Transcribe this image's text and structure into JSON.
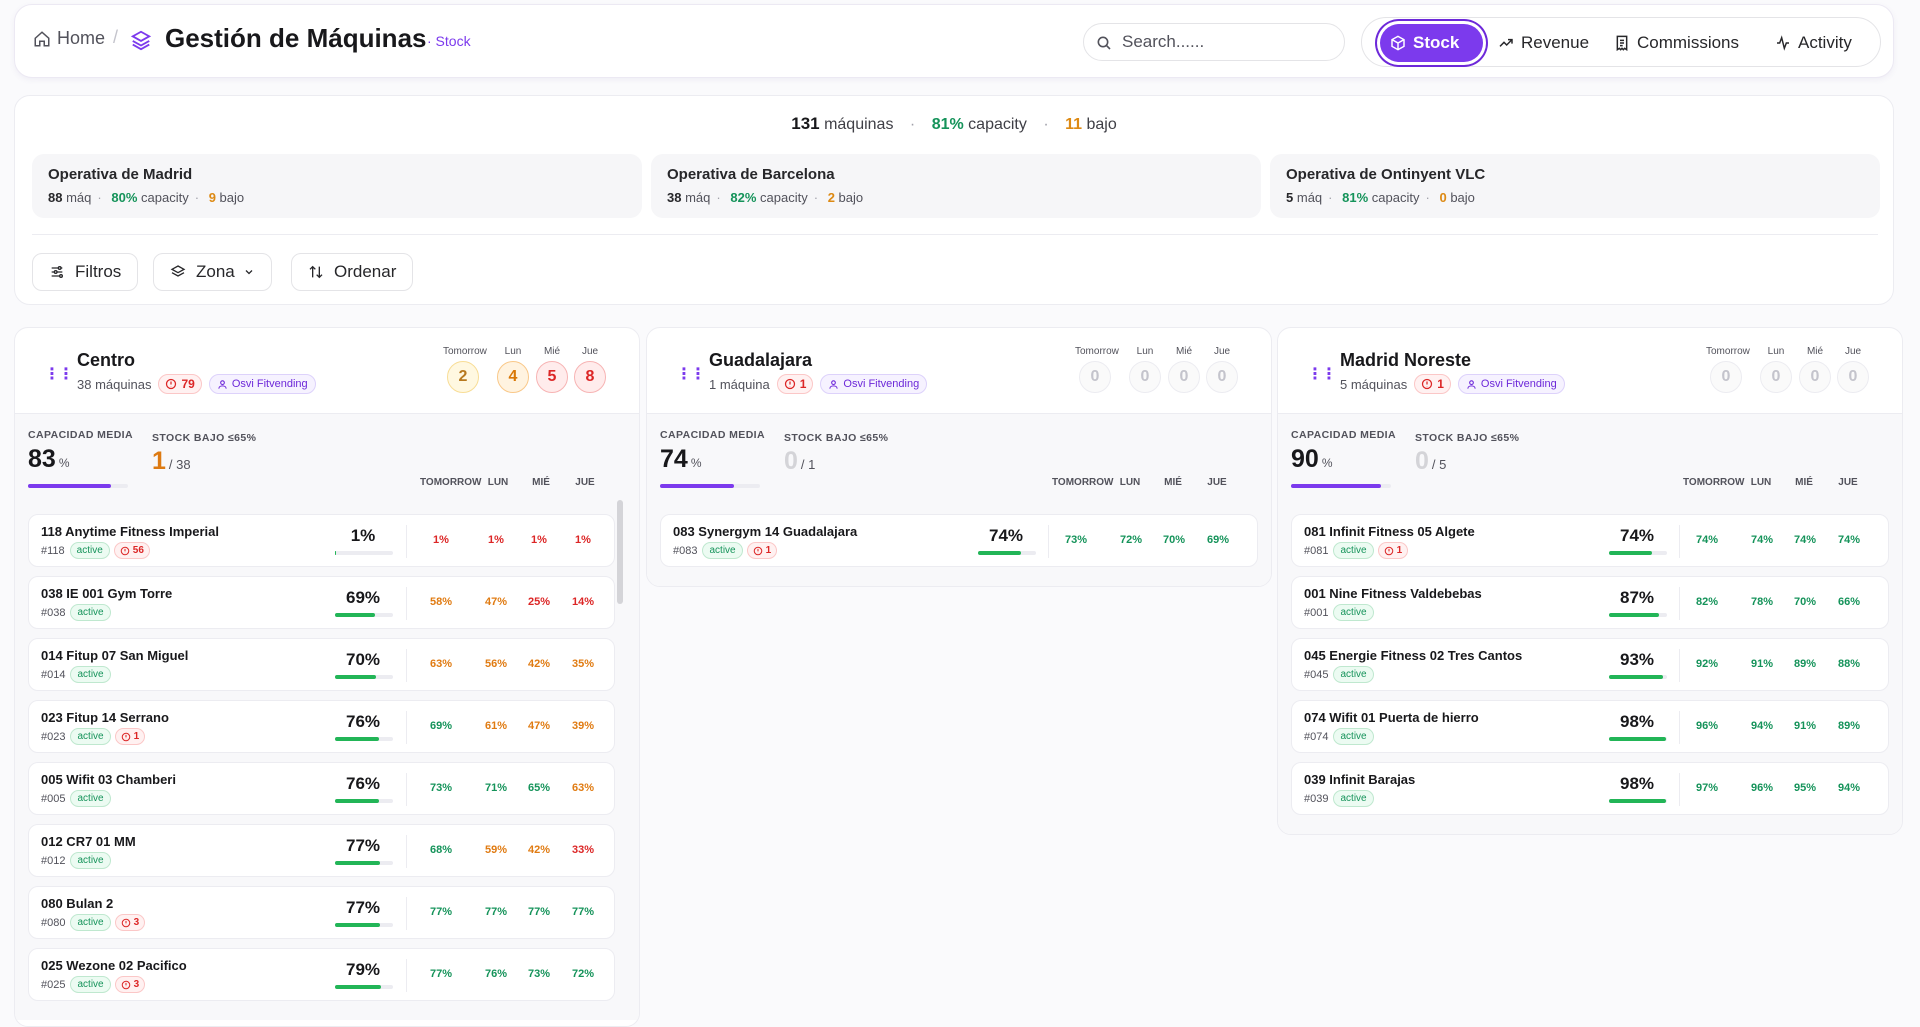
{
  "header": {
    "home_label": "Home",
    "separator": "/",
    "title": "Gestión de Máquinas",
    "title_tag": "· Stock",
    "search_placeholder": "Search......",
    "tabs": [
      {
        "label": "Stock",
        "icon": "package-icon",
        "active": true
      },
      {
        "label": "Revenue",
        "icon": "trending-up-icon",
        "active": false
      },
      {
        "label": "Commissions",
        "icon": "receipt-icon",
        "active": false
      },
      {
        "label": "Activity",
        "icon": "activity-icon",
        "active": false
      }
    ]
  },
  "summary": {
    "total_machines": "131",
    "machines_label": "máquinas",
    "capacity": "81%",
    "capacity_label": "capacity",
    "low": "11",
    "low_label": "bajo",
    "regions": [
      {
        "name": "Operativa de Madrid",
        "machines": "88",
        "machines_unit": "máq",
        "capacity": "80%",
        "capacity_label": "capacity",
        "low": "9",
        "low_label": "bajo"
      },
      {
        "name": "Operativa de Barcelona",
        "machines": "38",
        "machines_unit": "máq",
        "capacity": "82%",
        "capacity_label": "capacity",
        "low": "2",
        "low_label": "bajo"
      },
      {
        "name": "Operativa de Ontinyent VLC",
        "machines": "5",
        "machines_unit": "máq",
        "capacity": "81%",
        "capacity_label": "capacity",
        "low": "0",
        "low_label": "bajo"
      }
    ]
  },
  "filters": {
    "filtros": "Filtros",
    "zona": "Zona",
    "ordenar": "Ordenar"
  },
  "columns": [
    {
      "name": "Centro",
      "machines_text": "38 máquinas",
      "alerts": "79",
      "owner": "Osvi Fitvending",
      "day_headers": [
        "Tomorrow",
        "Lun",
        "Mié",
        "Jue"
      ],
      "day_counts": [
        "2",
        "4",
        "5",
        "8"
      ],
      "day_levels": [
        "y",
        "o",
        "r",
        "r"
      ],
      "cap_label": "CAPACIDAD MEDIA",
      "cap_value": "83",
      "cap_unit": "%",
      "cap_fraction": 0.83,
      "low_label": "STOCK BAJO ≤65%",
      "low_value": "1",
      "low_total": "/ 38",
      "low_color": "o",
      "forecast_headers": [
        "TOMORROW",
        "LUN",
        "MIÉ",
        "JUE"
      ],
      "machines": [
        {
          "name": "118 Anytime Fitness Imperial",
          "id": "#118",
          "status": "active",
          "alert": "56",
          "pct": "1%",
          "level": 0.01,
          "fc": [
            "1%",
            "1%",
            "1%",
            "1%"
          ],
          "fcc": [
            "r",
            "r",
            "r",
            "r"
          ]
        },
        {
          "name": "038 IE 001 Gym Torre",
          "id": "#038",
          "status": "active",
          "alert": "",
          "pct": "69%",
          "level": 0.69,
          "fc": [
            "58%",
            "47%",
            "25%",
            "14%"
          ],
          "fcc": [
            "o",
            "o",
            "r",
            "r"
          ]
        },
        {
          "name": "014 Fitup 07 San Miguel",
          "id": "#014",
          "status": "active",
          "alert": "",
          "pct": "70%",
          "level": 0.7,
          "fc": [
            "63%",
            "56%",
            "42%",
            "35%"
          ],
          "fcc": [
            "o",
            "o",
            "o",
            "o"
          ]
        },
        {
          "name": "023 Fitup 14 Serrano",
          "id": "#023",
          "status": "active",
          "alert": "1",
          "pct": "76%",
          "level": 0.76,
          "fc": [
            "69%",
            "61%",
            "47%",
            "39%"
          ],
          "fcc": [
            "g",
            "o",
            "o",
            "o"
          ]
        },
        {
          "name": "005 Wifit 03 Chamberi",
          "id": "#005",
          "status": "active",
          "alert": "",
          "pct": "76%",
          "level": 0.76,
          "fc": [
            "73%",
            "71%",
            "65%",
            "63%"
          ],
          "fcc": [
            "g",
            "g",
            "g",
            "o"
          ]
        },
        {
          "name": "012 CR7 01 MM",
          "id": "#012",
          "status": "active",
          "alert": "",
          "pct": "77%",
          "level": 0.77,
          "fc": [
            "68%",
            "59%",
            "42%",
            "33%"
          ],
          "fcc": [
            "g",
            "o",
            "o",
            "r"
          ]
        },
        {
          "name": "080 Bulan 2",
          "id": "#080",
          "status": "active",
          "alert": "3",
          "pct": "77%",
          "level": 0.77,
          "fc": [
            "77%",
            "77%",
            "77%",
            "77%"
          ],
          "fcc": [
            "g",
            "g",
            "g",
            "g"
          ]
        },
        {
          "name": "025 Wezone 02 Pacifico",
          "id": "#025",
          "status": "active",
          "alert": "3",
          "pct": "79%",
          "level": 0.79,
          "fc": [
            "77%",
            "76%",
            "73%",
            "72%"
          ],
          "fcc": [
            "g",
            "g",
            "g",
            "g"
          ]
        }
      ]
    },
    {
      "name": "Guadalajara",
      "machines_text": "1 máquina",
      "alerts": "1",
      "owner": "Osvi Fitvending",
      "day_headers": [
        "Tomorrow",
        "Lun",
        "Mié",
        "Jue"
      ],
      "day_counts": [
        "0",
        "0",
        "0",
        "0"
      ],
      "day_levels": [
        "n",
        "n",
        "n",
        "n"
      ],
      "cap_label": "CAPACIDAD MEDIA",
      "cap_value": "74",
      "cap_unit": "%",
      "cap_fraction": 0.74,
      "low_label": "STOCK BAJO ≤65%",
      "low_value": "0",
      "low_total": "/ 1",
      "low_color": "n",
      "forecast_headers": [
        "TOMORROW",
        "LUN",
        "MIÉ",
        "JUE"
      ],
      "machines": [
        {
          "name": "083 Synergym 14 Guadalajara",
          "id": "#083",
          "status": "active",
          "alert": "1",
          "pct": "74%",
          "level": 0.74,
          "fc": [
            "73%",
            "72%",
            "70%",
            "69%"
          ],
          "fcc": [
            "g",
            "g",
            "g",
            "g"
          ]
        }
      ]
    },
    {
      "name": "Madrid Noreste",
      "machines_text": "5 máquinas",
      "alerts": "1",
      "owner": "Osvi Fitvending",
      "day_headers": [
        "Tomorrow",
        "Lun",
        "Mié",
        "Jue"
      ],
      "day_counts": [
        "0",
        "0",
        "0",
        "0"
      ],
      "day_levels": [
        "n",
        "n",
        "n",
        "n"
      ],
      "cap_label": "CAPACIDAD MEDIA",
      "cap_value": "90",
      "cap_unit": "%",
      "cap_fraction": 0.9,
      "low_label": "STOCK BAJO ≤65%",
      "low_value": "0",
      "low_total": "/ 5",
      "low_color": "n",
      "forecast_headers": [
        "TOMORROW",
        "LUN",
        "MIÉ",
        "JUE"
      ],
      "machines": [
        {
          "name": "081 Infinit Fitness 05 Algete",
          "id": "#081",
          "status": "active",
          "alert": "1",
          "pct": "74%",
          "level": 0.74,
          "fc": [
            "74%",
            "74%",
            "74%",
            "74%"
          ],
          "fcc": [
            "g",
            "g",
            "g",
            "g"
          ]
        },
        {
          "name": "001 Nine Fitness Valdebebas",
          "id": "#001",
          "status": "active",
          "alert": "",
          "pct": "87%",
          "level": 0.87,
          "fc": [
            "82%",
            "78%",
            "70%",
            "66%"
          ],
          "fcc": [
            "g",
            "g",
            "g",
            "g"
          ]
        },
        {
          "name": "045 Energie Fitness 02 Tres Cantos",
          "id": "#045",
          "status": "active",
          "alert": "",
          "pct": "93%",
          "level": 0.93,
          "fc": [
            "92%",
            "91%",
            "89%",
            "88%"
          ],
          "fcc": [
            "g",
            "g",
            "g",
            "g"
          ]
        },
        {
          "name": "074 Wifit 01 Puerta de hierro",
          "id": "#074",
          "status": "active",
          "alert": "",
          "pct": "98%",
          "level": 0.98,
          "fc": [
            "96%",
            "94%",
            "91%",
            "89%"
          ],
          "fcc": [
            "g",
            "g",
            "g",
            "g"
          ]
        },
        {
          "name": "039 Infinit Barajas",
          "id": "#039",
          "status": "active",
          "alert": "",
          "pct": "98%",
          "level": 0.98,
          "fc": [
            "97%",
            "96%",
            "95%",
            "94%"
          ],
          "fcc": [
            "g",
            "g",
            "g",
            "g"
          ]
        }
      ]
    }
  ]
}
